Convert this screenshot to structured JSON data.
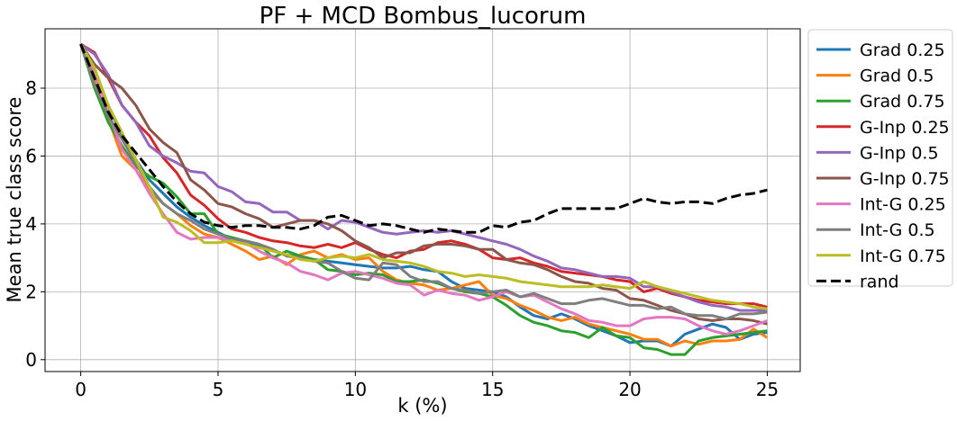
{
  "chart_data": {
    "type": "line",
    "title": "PF + MCD Bombus_lucorum",
    "xlabel": "k (%)",
    "ylabel": "Mean true class score",
    "xlim": [
      -1.3,
      26.2
    ],
    "ylim": [
      -0.35,
      9.75
    ],
    "xticks": [
      0,
      5,
      10,
      15,
      20,
      25
    ],
    "yticks": [
      0,
      2,
      4,
      6,
      8
    ],
    "grid": true,
    "legend_position": "outside-right",
    "x": [
      0,
      0.5,
      1,
      1.5,
      2,
      2.5,
      3,
      3.5,
      4,
      4.5,
      5,
      5.5,
      6,
      6.5,
      7,
      7.5,
      8,
      8.5,
      9,
      9.5,
      10,
      10.5,
      11,
      11.5,
      12,
      12.5,
      13,
      13.5,
      14,
      14.5,
      15,
      15.5,
      16,
      16.5,
      17,
      17.5,
      18,
      18.5,
      19,
      19.5,
      20,
      20.5,
      21,
      21.5,
      22,
      22.5,
      23,
      23.5,
      24,
      24.5,
      25
    ],
    "series": [
      {
        "name": "Grad 0.25",
        "color": "#1f77b4",
        "dashed": false,
        "values": [
          9.3,
          8.4,
          7.5,
          6.6,
          5.9,
          5.3,
          4.9,
          4.5,
          4.2,
          3.95,
          3.75,
          3.55,
          3.45,
          3.35,
          3.2,
          3.1,
          3.0,
          2.95,
          2.9,
          2.85,
          2.8,
          2.75,
          2.7,
          2.7,
          2.75,
          2.65,
          2.6,
          2.3,
          2.1,
          2.05,
          2.0,
          1.85,
          1.55,
          1.3,
          1.2,
          1.35,
          1.2,
          1.0,
          0.85,
          0.7,
          0.5,
          0.55,
          0.55,
          0.4,
          0.75,
          0.9,
          1.05,
          0.95,
          0.6,
          0.75,
          0.8
        ]
      },
      {
        "name": "Grad 0.5",
        "color": "#ff7f0e",
        "dashed": false,
        "values": [
          9.3,
          8.2,
          7.1,
          6.0,
          5.6,
          5.0,
          4.6,
          4.3,
          3.95,
          3.7,
          3.6,
          3.4,
          3.2,
          2.95,
          3.05,
          2.8,
          3.1,
          3.2,
          3.0,
          3.1,
          2.95,
          3.0,
          2.6,
          2.35,
          2.25,
          2.2,
          2.05,
          2.1,
          2.2,
          2.3,
          1.9,
          1.8,
          1.6,
          1.45,
          1.25,
          1.15,
          1.25,
          1.05,
          0.95,
          0.85,
          0.75,
          0.6,
          0.6,
          0.4,
          0.55,
          0.45,
          0.55,
          0.55,
          0.6,
          0.9,
          0.65
        ]
      },
      {
        "name": "Grad 0.75",
        "color": "#2ca02c",
        "dashed": false,
        "values": [
          9.3,
          8.0,
          7.0,
          6.3,
          5.7,
          5.4,
          5.2,
          4.8,
          4.3,
          4.3,
          3.7,
          3.6,
          3.5,
          3.4,
          3.0,
          3.2,
          3.05,
          2.95,
          2.65,
          2.6,
          2.5,
          2.55,
          2.5,
          2.3,
          2.3,
          2.35,
          2.25,
          2.1,
          2.0,
          1.95,
          1.85,
          1.6,
          1.3,
          1.1,
          1.0,
          0.85,
          0.8,
          0.65,
          0.95,
          0.7,
          0.65,
          0.35,
          0.3,
          0.15,
          0.15,
          0.55,
          0.65,
          0.7,
          0.75,
          0.8,
          0.85
        ]
      },
      {
        "name": "G-Inp 0.25",
        "color": "#d62728",
        "dashed": false,
        "values": [
          9.3,
          9.05,
          8.3,
          7.5,
          7.0,
          6.6,
          5.95,
          5.5,
          4.85,
          4.55,
          4.15,
          3.85,
          3.75,
          3.6,
          3.5,
          3.45,
          3.35,
          3.3,
          3.4,
          3.3,
          3.45,
          3.25,
          3.1,
          3.0,
          3.2,
          3.25,
          3.45,
          3.5,
          3.4,
          3.25,
          3.0,
          2.95,
          3.0,
          2.85,
          2.75,
          2.6,
          2.55,
          2.5,
          2.45,
          2.35,
          2.3,
          2.0,
          2.1,
          1.95,
          1.85,
          1.75,
          1.7,
          1.65,
          1.65,
          1.65,
          1.55
        ]
      },
      {
        "name": "G-Inp 0.5",
        "color": "#9467bd",
        "dashed": false,
        "values": [
          9.3,
          9.0,
          8.4,
          7.5,
          7.0,
          6.3,
          6.0,
          5.8,
          5.55,
          5.5,
          5.1,
          4.95,
          4.65,
          4.6,
          4.35,
          4.35,
          4.1,
          4.1,
          3.85,
          4.1,
          4.05,
          3.9,
          3.75,
          3.7,
          3.75,
          3.8,
          3.75,
          3.8,
          3.7,
          3.6,
          3.5,
          3.4,
          3.25,
          3.05,
          2.9,
          2.7,
          2.65,
          2.55,
          2.45,
          2.45,
          2.4,
          2.15,
          2.15,
          2.0,
          1.85,
          1.7,
          1.6,
          1.55,
          1.45,
          1.45,
          1.45
        ]
      },
      {
        "name": "G-Inp 0.75",
        "color": "#8c564b",
        "dashed": false,
        "values": [
          9.3,
          8.7,
          8.3,
          8.0,
          7.5,
          6.8,
          6.4,
          6.1,
          5.3,
          5.0,
          4.6,
          4.5,
          4.3,
          4.15,
          3.9,
          4.0,
          4.1,
          4.1,
          4.0,
          3.8,
          3.5,
          3.3,
          3.0,
          3.15,
          3.15,
          3.35,
          3.4,
          3.4,
          3.35,
          3.25,
          3.25,
          2.95,
          2.85,
          2.8,
          2.65,
          2.45,
          2.3,
          2.25,
          2.1,
          2.05,
          1.8,
          1.75,
          1.6,
          1.45,
          1.35,
          1.2,
          1.15,
          1.2,
          1.2,
          1.15,
          1.05
        ]
      },
      {
        "name": "Int-G 0.25",
        "color": "#e377c2",
        "dashed": false,
        "values": [
          9.3,
          8.5,
          7.3,
          6.2,
          5.6,
          4.9,
          4.3,
          3.75,
          3.55,
          3.6,
          3.6,
          3.5,
          3.45,
          3.2,
          3.0,
          2.85,
          2.6,
          2.5,
          2.35,
          2.55,
          2.6,
          2.5,
          2.4,
          2.25,
          2.2,
          1.9,
          2.05,
          1.95,
          1.9,
          1.75,
          1.85,
          2.0,
          1.85,
          1.9,
          1.7,
          1.5,
          1.35,
          1.15,
          1.1,
          1.0,
          1.0,
          1.2,
          1.25,
          1.25,
          1.2,
          1.0,
          0.85,
          0.75,
          0.85,
          1.0,
          1.15
        ]
      },
      {
        "name": "Int-G 0.5",
        "color": "#7f7f7f",
        "dashed": false,
        "values": [
          9.3,
          8.1,
          7.2,
          6.5,
          5.8,
          5.1,
          4.6,
          4.3,
          4.1,
          3.85,
          3.7,
          3.55,
          3.5,
          3.4,
          3.25,
          3.05,
          3.0,
          2.9,
          2.85,
          2.6,
          2.4,
          2.35,
          2.85,
          2.8,
          2.45,
          2.3,
          2.3,
          2.1,
          2.05,
          1.95,
          2.0,
          2.05,
          1.85,
          1.95,
          1.8,
          1.65,
          1.65,
          1.75,
          1.8,
          1.7,
          1.6,
          1.6,
          1.5,
          1.55,
          1.35,
          1.3,
          1.3,
          1.2,
          1.35,
          1.35,
          1.4
        ]
      },
      {
        "name": "Int-G 0.75",
        "color": "#bcbd22",
        "dashed": false,
        "values": [
          9.3,
          8.6,
          7.5,
          6.7,
          5.9,
          5.1,
          4.2,
          4.05,
          3.8,
          3.45,
          3.45,
          3.5,
          3.4,
          3.3,
          3.2,
          3.1,
          2.95,
          2.9,
          3.0,
          3.05,
          3.0,
          3.1,
          2.95,
          2.9,
          2.85,
          2.75,
          2.6,
          2.55,
          2.45,
          2.5,
          2.45,
          2.4,
          2.3,
          2.25,
          2.2,
          2.15,
          2.15,
          2.15,
          2.2,
          2.15,
          2.1,
          2.3,
          2.15,
          2.05,
          1.95,
          1.85,
          1.75,
          1.7,
          1.65,
          1.55,
          1.5
        ]
      },
      {
        "name": "rand",
        "color": "#000000",
        "dashed": true,
        "values": [
          9.3,
          8.3,
          7.3,
          6.6,
          6.1,
          5.6,
          5.1,
          4.65,
          4.3,
          4.05,
          3.95,
          3.9,
          3.95,
          3.95,
          3.9,
          3.9,
          3.85,
          3.95,
          4.2,
          4.25,
          4.1,
          3.95,
          4.0,
          3.95,
          3.85,
          3.75,
          3.85,
          3.8,
          3.75,
          3.75,
          3.95,
          3.9,
          4.05,
          4.1,
          4.3,
          4.45,
          4.45,
          4.45,
          4.45,
          4.45,
          4.6,
          4.75,
          4.65,
          4.6,
          4.65,
          4.65,
          4.6,
          4.75,
          4.85,
          4.9,
          5.0
        ]
      }
    ]
  }
}
